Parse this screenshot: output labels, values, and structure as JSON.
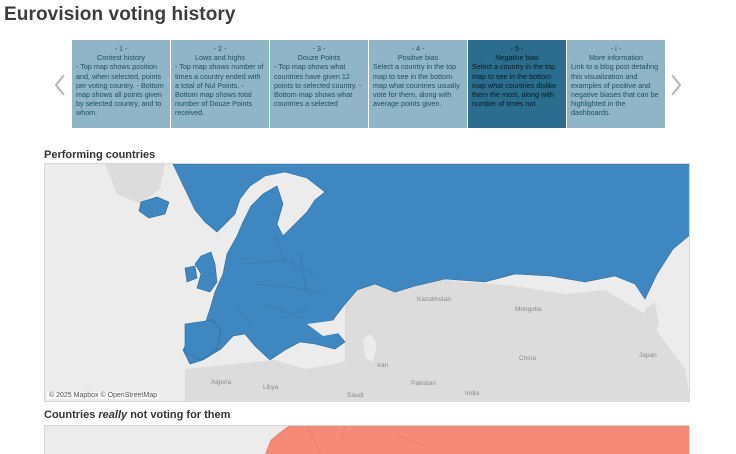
{
  "title": "Eurovision voting history",
  "colors": {
    "step_bg": "#8fb5c7",
    "step_active_bg": "#2b6d8c",
    "performing": "#3f87c0",
    "negative": "#f58a78",
    "land": "#dcdcdc"
  },
  "steps": [
    {
      "num": "- 1 -",
      "head": "Contest history",
      "body": "- Top map shows position and, when selected, points per voting country. - Bottom map shows all points given by selected country, and to whom."
    },
    {
      "num": "- 2 -",
      "head": "Lows and highs",
      "body": "- Top map shows number of times a country ended with a total of Nul Points. - Bottom map shows total number of Douze Points received."
    },
    {
      "num": "- 3 -",
      "head": "Douze Points",
      "body": "- Top map shows what countries have given 12 points to selected country. - Bottom map shows what countries a selected"
    },
    {
      "num": "- 4 -",
      "head": "Positive bias",
      "body": "Select a country in the top map to see in the bottom map what countries usually vote for them, along with average points given."
    },
    {
      "num": "- 5 -",
      "head": "Negative bias",
      "body": "Select a country in the top map to see in the bottom map what countries dislike them the most, along with number of times not"
    },
    {
      "num": "- i -",
      "head": "More information",
      "body": "Link to a blog post detailing this visualization and examples of positive and negative biases that can be highlighted in the dashboards."
    }
  ],
  "nav": {
    "prev_icon": "chevron-left-icon",
    "next_icon": "chevron-right-icon"
  },
  "sections": {
    "top": "Performing countries",
    "bottom_pre": "Countries ",
    "bottom_em": "really",
    "bottom_post": " not voting for them"
  },
  "map_places": {
    "kazakhstan": "Kazakhstan",
    "china": "China",
    "japan": "Japan",
    "iran": "Iran",
    "pakistan": "Pakistan",
    "libya": "Libya",
    "algeria": "Algeria",
    "saudi": "Saudi",
    "india": "India",
    "mongolia": "Mongolia"
  },
  "attribution": "© 2025 Mapbox © OpenStreetMap"
}
